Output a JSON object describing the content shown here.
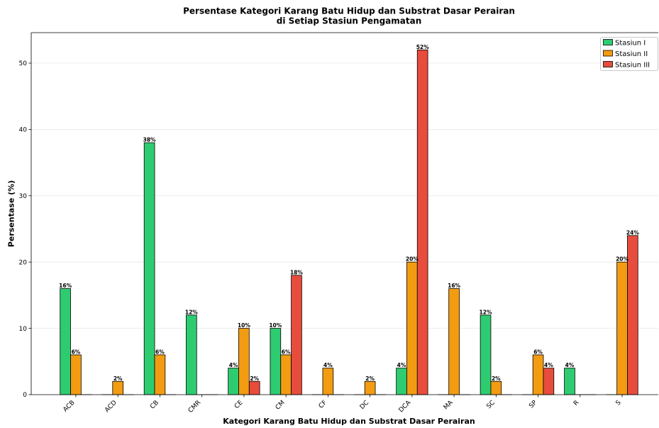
{
  "chart_data": {
    "type": "bar",
    "title": [
      "Persentase Kategori Karang Batu Hidup dan Substrat Dasar Perairan",
      "di Setiap Stasiun Pengamatan"
    ],
    "xlabel": "Kategori Karang Batu Hidup dan Substrat Dasar Perairan",
    "ylabel": "Persentase (%)",
    "categories": [
      "ACB",
      "ACD",
      "CB",
      "CMR",
      "CE",
      "CM",
      "CF",
      "DC",
      "DCA",
      "MA",
      "SC",
      "SP",
      "R",
      "S"
    ],
    "series": [
      {
        "name": "Stasiun I",
        "color": "#2ecc71",
        "values": [
          16,
          0,
          38,
          12,
          4,
          10,
          0,
          0,
          4,
          0,
          12,
          0,
          4,
          0
        ]
      },
      {
        "name": "Stasiun II",
        "color": "#f39c12",
        "values": [
          6,
          2,
          6,
          0,
          10,
          6,
          4,
          2,
          20,
          16,
          2,
          6,
          0,
          20
        ]
      },
      {
        "name": "Stasiun III",
        "color": "#e74c3c",
        "values": [
          0,
          0,
          0,
          0,
          2,
          18,
          0,
          0,
          52,
          0,
          0,
          4,
          0,
          24
        ]
      }
    ],
    "ylim": [
      0,
      54.6
    ],
    "yticks": [
      0,
      10,
      20,
      30,
      40,
      50
    ],
    "data_label_suffix": "%",
    "legend": "top-right",
    "grid": "y",
    "bar_edge_color": "#000000"
  }
}
